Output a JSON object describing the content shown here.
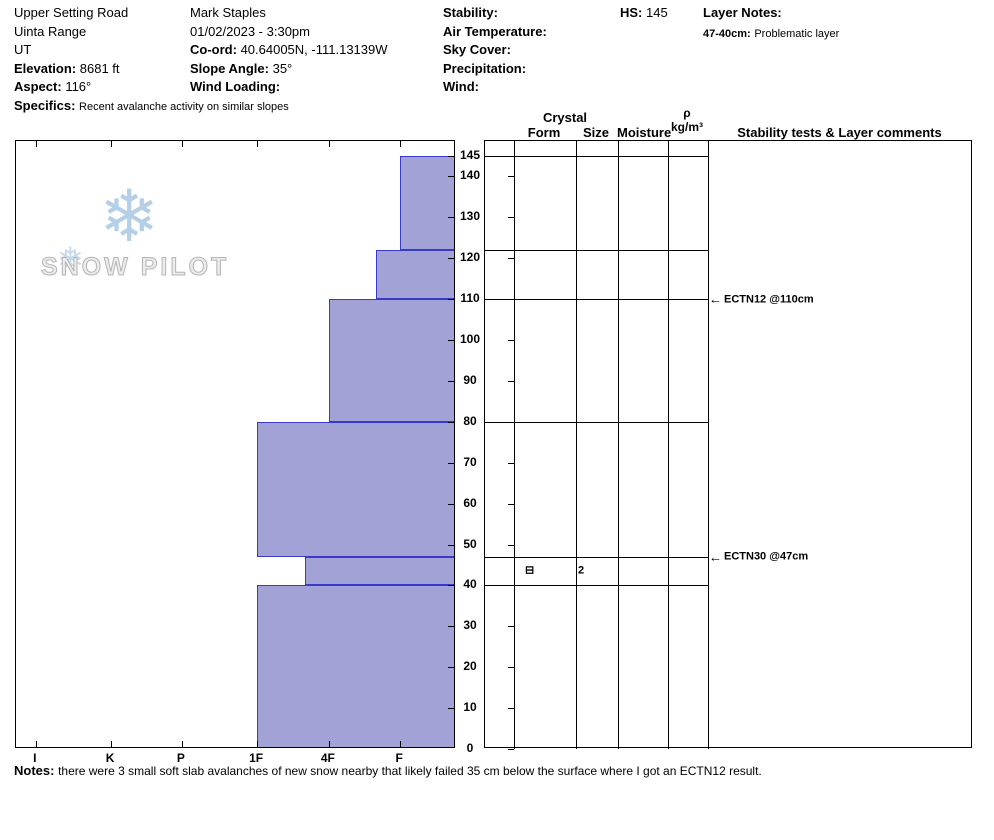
{
  "header": {
    "location": {
      "name": "Upper Setting Road",
      "range": "Uinta Range",
      "state": "UT",
      "elevation_label": "Elevation:",
      "elevation_value": "8681 ft",
      "aspect_label": "Aspect:",
      "aspect_value": "116°",
      "specifics_label": "Specifics:",
      "specifics_value": "Recent avalanche activity on similar slopes"
    },
    "observer": {
      "name": "Mark Staples",
      "datetime": "01/02/2023 - 3:30pm",
      "coord_label": "Co-ord:",
      "coord_value": "40.64005N, -111.13139W",
      "slope_angle_label": "Slope Angle:",
      "slope_angle_value": "35°",
      "wind_loading_label": "Wind Loading:",
      "wind_loading_value": ""
    },
    "conditions": {
      "stability_label": "Stability:",
      "stability_value": "",
      "air_temperature_label": "Air Temperature:",
      "air_temperature_value": "",
      "sky_cover_label": "Sky Cover:",
      "sky_cover_value": "",
      "precipitation_label": "Precipitation:",
      "precipitation_value": "",
      "wind_label": "Wind:",
      "wind_value": ""
    },
    "hs_label": "HS:",
    "hs_value": "145",
    "layer_notes_label": "Layer Notes:",
    "layer_notes": [
      {
        "range": "47-40cm:",
        "text": "Problematic layer"
      }
    ]
  },
  "chart_data": {
    "type": "bar",
    "subtype": "snow-hardness-profile",
    "title": "",
    "depth_axis": {
      "unit": "cm",
      "min": 0,
      "max": 145,
      "tick_labels": [
        145,
        140,
        130,
        120,
        110,
        100,
        90,
        80,
        70,
        60,
        50,
        40,
        30,
        20,
        10,
        0
      ]
    },
    "hardness_axis": {
      "labels": [
        "I",
        "K",
        "P",
        "1F",
        "4F",
        "F"
      ],
      "positions": [
        0.045,
        0.216,
        0.377,
        0.548,
        0.711,
        0.873
      ]
    },
    "layers": [
      {
        "top_cm": 145,
        "bottom_cm": 122,
        "hardness": "F",
        "hardness_frac": 0.873
      },
      {
        "top_cm": 122,
        "bottom_cm": 110,
        "hardness": "F+",
        "hardness_frac": 0.818
      },
      {
        "top_cm": 110,
        "bottom_cm": 80,
        "hardness": "4F",
        "hardness_frac": 0.711
      },
      {
        "top_cm": 80,
        "bottom_cm": 47,
        "hardness": "1F",
        "hardness_frac": 0.548
      },
      {
        "top_cm": 47,
        "bottom_cm": 40,
        "hardness": "4F+",
        "hardness_frac": 0.657,
        "grain_form_symbol": "⊟",
        "grain_size_mm": "2"
      },
      {
        "top_cm": 40,
        "bottom_cm": 0,
        "hardness": "1F",
        "hardness_frac": 0.548
      }
    ],
    "table_headers": {
      "crystal": "Crystal",
      "form": "Form",
      "size": "Size",
      "moisture": "Moisture",
      "density_symbol": "ρ",
      "density_unit": "kg/m³",
      "comments": "Stability tests & Layer comments"
    },
    "stability_tests": [
      {
        "depth_cm": 110,
        "label": "ECTN12 @110cm"
      },
      {
        "depth_cm": 47,
        "label": "ECTN30 @47cm"
      }
    ],
    "colors": {
      "bar_fill": "#a2a2d6",
      "bar_stroke": "#3a3ac8",
      "line": "#000000",
      "watermark_flake": "#b5d0e6",
      "watermark_text": "#ebebeb"
    },
    "watermark": "SNOW PILOT"
  },
  "notes": {
    "label": "Notes:",
    "text": "there were 3 small soft slab avalanches of new snow nearby that likely failed 35 cm below the surface where I got an ECTN12 result."
  }
}
